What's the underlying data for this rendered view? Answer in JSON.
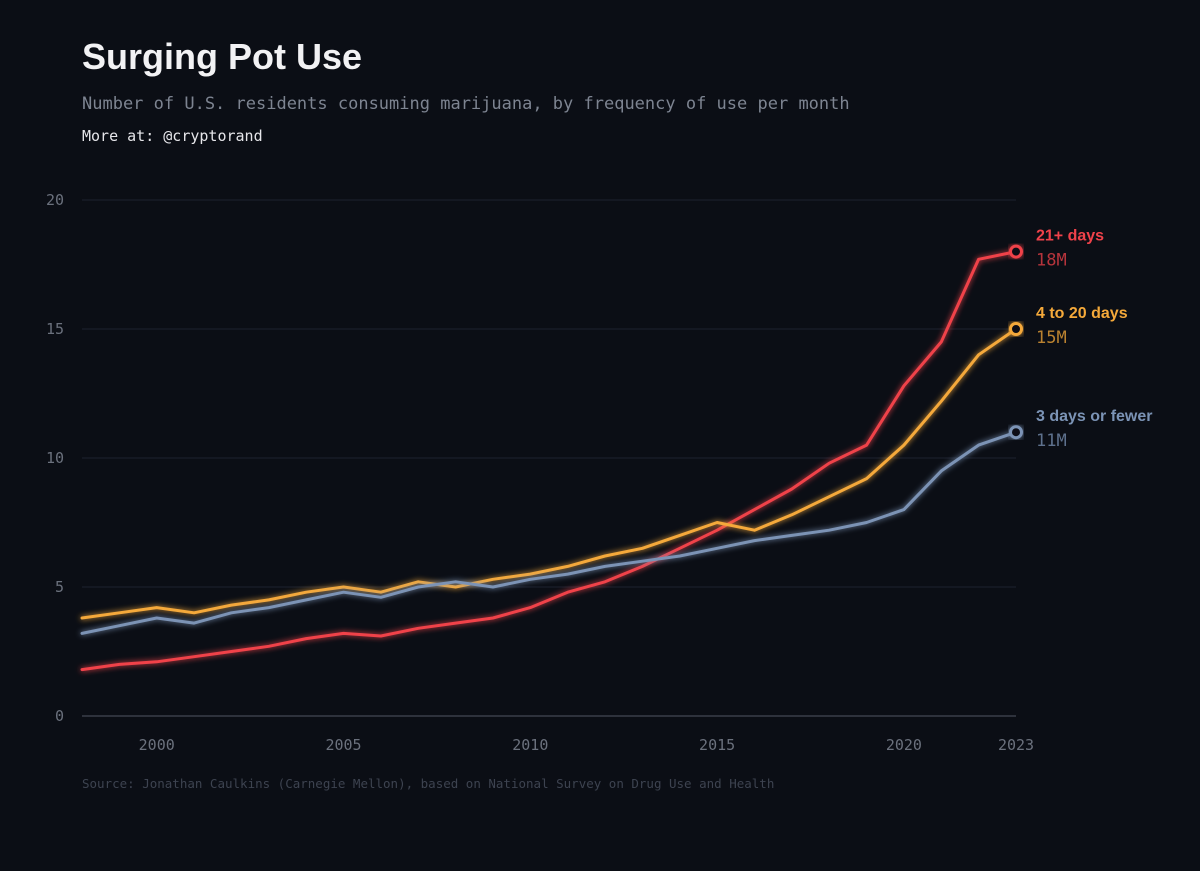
{
  "header": {
    "title": "Surging Pot Use",
    "subtitle": "Number of U.S. residents consuming marijuana, by frequency of use per month",
    "credit": "More at: @cryptorand"
  },
  "footer": {
    "source": "Source: Jonathan Caulkins (Carnegie Mellon), based on National Survey on Drug Use and Health"
  },
  "chart_data": {
    "type": "line",
    "title": "Surging Pot Use",
    "subtitle": "Number of U.S. residents consuming marijuana, by frequency of use per month",
    "xlabel": "",
    "ylabel": "",
    "x": [
      1998,
      1999,
      2000,
      2001,
      2002,
      2003,
      2004,
      2005,
      2006,
      2007,
      2008,
      2009,
      2010,
      2011,
      2012,
      2013,
      2014,
      2015,
      2016,
      2017,
      2018,
      2019,
      2020,
      2021,
      2022,
      2023
    ],
    "xlim": [
      1998,
      2023
    ],
    "ylim": [
      0,
      20
    ],
    "x_ticks": [
      2000,
      2005,
      2010,
      2015,
      2020,
      2023
    ],
    "y_ticks": [
      0,
      5,
      10,
      15,
      20
    ],
    "grid": true,
    "legend": "end-of-line labels",
    "series": [
      {
        "name": "21+ days",
        "end_label": "18M",
        "color": "#f0424a",
        "values": [
          1.8,
          2.0,
          2.1,
          2.3,
          2.5,
          2.7,
          3.0,
          3.2,
          3.1,
          3.4,
          3.6,
          3.8,
          4.2,
          4.8,
          5.2,
          5.8,
          6.5,
          7.2,
          8.0,
          8.8,
          9.8,
          10.5,
          12.8,
          14.5,
          17.7,
          18.0
        ]
      },
      {
        "name": "4 to 20 days",
        "end_label": "15M",
        "color": "#f5a93a",
        "values": [
          3.8,
          4.0,
          4.2,
          4.0,
          4.3,
          4.5,
          4.8,
          5.0,
          4.8,
          5.2,
          5.0,
          5.3,
          5.5,
          5.8,
          6.2,
          6.5,
          7.0,
          7.5,
          7.2,
          7.8,
          8.5,
          9.2,
          10.5,
          12.2,
          14.0,
          15.0
        ]
      },
      {
        "name": "3 days or fewer",
        "end_label": "11M",
        "color": "#7b93b5",
        "values": [
          3.2,
          3.5,
          3.8,
          3.6,
          4.0,
          4.2,
          4.5,
          4.8,
          4.6,
          5.0,
          5.2,
          5.0,
          5.3,
          5.5,
          5.8,
          6.0,
          6.2,
          6.5,
          6.8,
          7.0,
          7.2,
          7.5,
          8.0,
          9.5,
          10.5,
          11.0
        ]
      }
    ]
  }
}
